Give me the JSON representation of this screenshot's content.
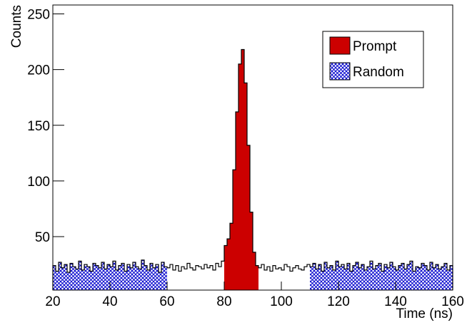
{
  "chart_data": {
    "type": "histogram",
    "x_label": "Time (ns)",
    "y_label": "Counts",
    "xlim": [
      20,
      160
    ],
    "ylim": [
      2,
      258
    ],
    "xticks": [
      20,
      40,
      60,
      80,
      100,
      120,
      140,
      160
    ],
    "yticks": [
      50,
      100,
      150,
      200,
      250
    ],
    "bins": [
      20,
      21,
      22,
      23,
      24,
      25,
      26,
      27,
      28,
      29,
      30,
      31,
      32,
      33,
      34,
      35,
      36,
      37,
      38,
      39,
      40,
      41,
      42,
      43,
      44,
      45,
      46,
      47,
      48,
      49,
      50,
      51,
      52,
      53,
      54,
      55,
      56,
      57,
      58,
      59,
      60,
      61,
      62,
      63,
      64,
      65,
      66,
      67,
      68,
      69,
      70,
      71,
      72,
      73,
      74,
      75,
      76,
      77,
      78,
      79,
      80,
      81,
      82,
      83,
      84,
      85,
      86,
      87,
      88,
      89,
      90,
      91,
      92,
      93,
      94,
      95,
      96,
      97,
      98,
      99,
      100,
      101,
      102,
      103,
      104,
      105,
      106,
      107,
      108,
      109,
      110,
      111,
      112,
      113,
      114,
      115,
      116,
      117,
      118,
      119,
      120,
      121,
      122,
      123,
      124,
      125,
      126,
      127,
      128,
      129,
      130,
      131,
      132,
      133,
      134,
      135,
      136,
      137,
      138,
      139,
      140,
      141,
      142,
      143,
      144,
      145,
      146,
      147,
      148,
      149,
      150,
      151,
      152,
      153,
      154,
      155,
      156,
      157,
      158,
      159,
      160
    ],
    "counts": [
      24,
      19,
      27,
      22,
      25,
      18,
      26,
      23,
      21,
      28,
      20,
      25,
      23,
      19,
      26,
      24,
      22,
      27,
      21,
      25,
      23,
      28,
      20,
      24,
      26,
      19,
      25,
      22,
      27,
      23,
      21,
      29,
      24,
      20,
      26,
      22,
      25,
      18,
      27,
      23,
      22,
      25,
      20,
      24,
      19,
      23,
      21,
      26,
      22,
      20,
      24,
      23,
      21,
      25,
      22,
      24,
      20,
      26,
      23,
      28,
      42,
      48,
      62,
      110,
      162,
      205,
      218,
      188,
      132,
      72,
      36,
      24,
      22,
      25,
      20,
      23,
      19,
      24,
      21,
      22,
      20,
      25,
      23,
      19,
      22,
      24,
      21,
      20,
      23,
      25,
      23,
      26,
      21,
      25,
      19,
      27,
      22,
      24,
      20,
      28,
      23,
      25,
      21,
      26,
      19,
      24,
      27,
      22,
      25,
      20,
      23,
      28,
      21,
      24,
      26,
      19,
      25,
      22,
      27,
      23,
      20,
      24,
      26,
      21,
      25,
      28,
      19,
      23,
      22,
      26,
      24,
      20,
      27,
      22,
      25,
      21,
      23,
      26,
      20,
      24
    ],
    "series": [
      {
        "name": "Prompt",
        "color": "#cc0000",
        "fill": "solid",
        "ranges": [
          [
            80,
            92
          ]
        ]
      },
      {
        "name": "Random",
        "color": "#0000cc",
        "fill": "hatch",
        "ranges": [
          [
            20,
            60
          ],
          [
            110,
            160
          ]
        ]
      }
    ]
  }
}
